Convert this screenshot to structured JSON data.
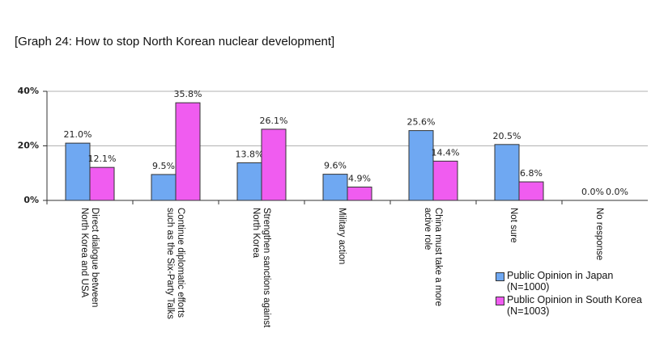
{
  "chart_data": {
    "type": "bar",
    "title": "[Graph 24: How to stop North Korean nuclear development]",
    "categories": [
      "Direct dialogue between North Korea and USA",
      "Continue diplomatic efforts such as the Six-Party Talks",
      "Strengthen sanctions against North Korea",
      "Military action",
      "China must take a more active role",
      "Not sure",
      "No response"
    ],
    "series": [
      {
        "name": "Public Opinion in Japan (N=1000)",
        "color": "#6fa8f2",
        "values": [
          21.0,
          9.5,
          13.8,
          9.6,
          25.6,
          20.5,
          0.0
        ],
        "value_labels": [
          "21.0%",
          "9.5%",
          "13.8%",
          "9.6%",
          "25.6%",
          "20.5%",
          "0.0%"
        ]
      },
      {
        "name": "Public Opinion in South Korea (N=1003)",
        "color": "#f05cf0",
        "values": [
          12.1,
          35.8,
          26.1,
          4.9,
          14.4,
          6.8,
          0.0
        ],
        "value_labels": [
          "12.1%",
          "35.8%",
          "26.1%",
          "4.9%",
          "14.4%",
          "6.8%",
          "0.0%"
        ]
      }
    ],
    "ylim": [
      0,
      40
    ],
    "yticks": [
      {
        "value": 0,
        "label": "0%"
      },
      {
        "value": 20,
        "label": "20%"
      },
      {
        "value": 40,
        "label": "40%"
      }
    ],
    "grid": true,
    "legend_position": "bottom-right"
  }
}
